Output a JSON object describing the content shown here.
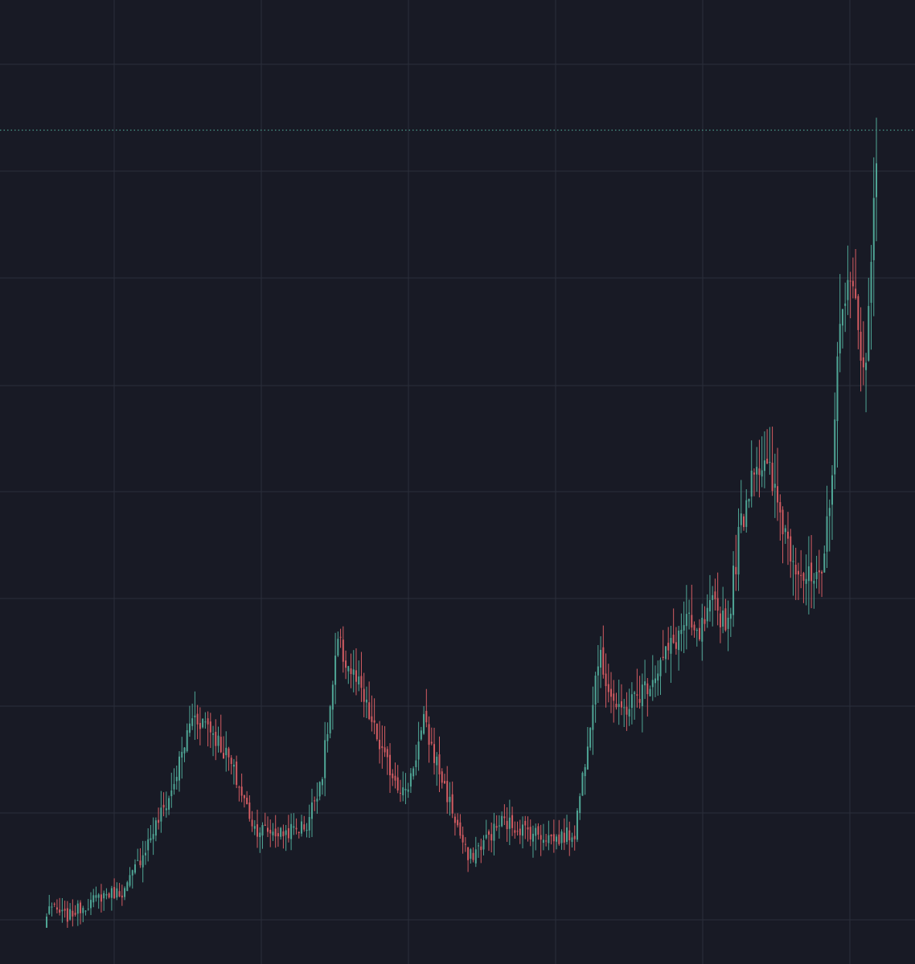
{
  "colors": {
    "background": "#181a25",
    "grid": "#2a2e3a",
    "up": "#4fa595",
    "down": "#d25c62",
    "price_line": "#4fa595"
  },
  "chart_data": {
    "type": "candlestick",
    "title": "",
    "xlabel": "",
    "ylabel": "",
    "ylim": [
      0,
      100
    ],
    "bar_count": 320,
    "grid": true,
    "price_line": {
      "value": 90.1,
      "style": "dotted"
    },
    "anchor_closes": [
      [
        0,
        5.0
      ],
      [
        1,
        6.5
      ],
      [
        3,
        5.8
      ],
      [
        8,
        5.1
      ],
      [
        12,
        5.9
      ],
      [
        22,
        7.5
      ],
      [
        30,
        7.9
      ],
      [
        38,
        12.6
      ],
      [
        48,
        18.6
      ],
      [
        56,
        26.8
      ],
      [
        62,
        26.0
      ],
      [
        70,
        22.1
      ],
      [
        80,
        14.7
      ],
      [
        90,
        14.1
      ],
      [
        100,
        15.0
      ],
      [
        106,
        20.8
      ],
      [
        112,
        34.5
      ],
      [
        120,
        29.9
      ],
      [
        130,
        22.0
      ],
      [
        138,
        18.3
      ],
      [
        145,
        26.0
      ],
      [
        155,
        17.4
      ],
      [
        162,
        11.3
      ],
      [
        175,
        15.4
      ],
      [
        185,
        14.4
      ],
      [
        196,
        13.5
      ],
      [
        203,
        14.2
      ],
      [
        207,
        22.3
      ],
      [
        212,
        33.4
      ],
      [
        220,
        26.9
      ],
      [
        230,
        29.9
      ],
      [
        240,
        34.2
      ],
      [
        246,
        37.0
      ],
      [
        250,
        35.0
      ],
      [
        256,
        38.5
      ],
      [
        262,
        37.1
      ],
      [
        266,
        46.0
      ],
      [
        272,
        54.7
      ],
      [
        278,
        52.6
      ],
      [
        286,
        44.9
      ],
      [
        292,
        41.5
      ],
      [
        298,
        40.8
      ],
      [
        302,
        54.2
      ],
      [
        306,
        73.2
      ],
      [
        310,
        72.1
      ],
      [
        315,
        64.2
      ],
      [
        319,
        88.1
      ]
    ]
  }
}
